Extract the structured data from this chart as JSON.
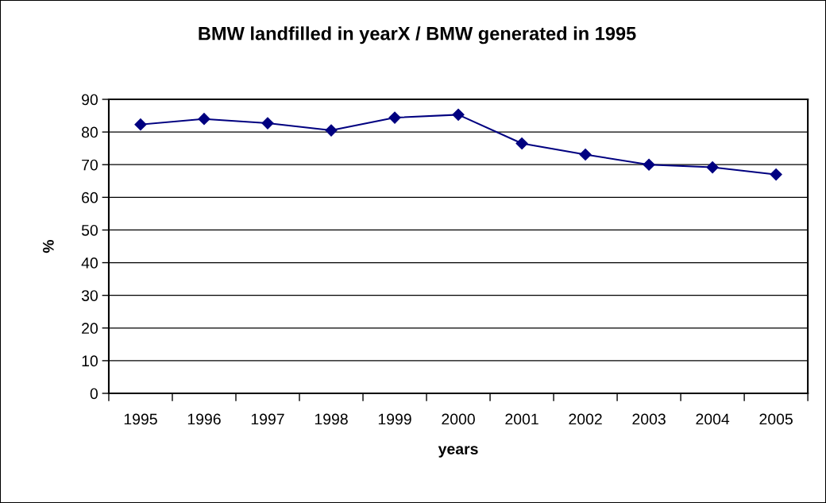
{
  "chart_data": {
    "type": "line",
    "title": "BMW landfilled in yearX / BMW generated in 1995",
    "xlabel": "years",
    "ylabel": "%",
    "categories": [
      "1995",
      "1996",
      "1997",
      "1998",
      "1999",
      "2000",
      "2001",
      "2002",
      "2003",
      "2004",
      "2005"
    ],
    "series": [
      {
        "color": "#000080",
        "values": [
          82.3,
          84.0,
          82.7,
          80.5,
          84.4,
          85.3,
          76.5,
          73.1,
          70.0,
          69.2,
          67.0
        ]
      }
    ],
    "ylim": [
      0,
      90
    ],
    "yticks": [
      0,
      10,
      20,
      30,
      40,
      50,
      60,
      70,
      80,
      90
    ],
    "grid": "y",
    "marker": "diamond",
    "line_style": "solid"
  }
}
